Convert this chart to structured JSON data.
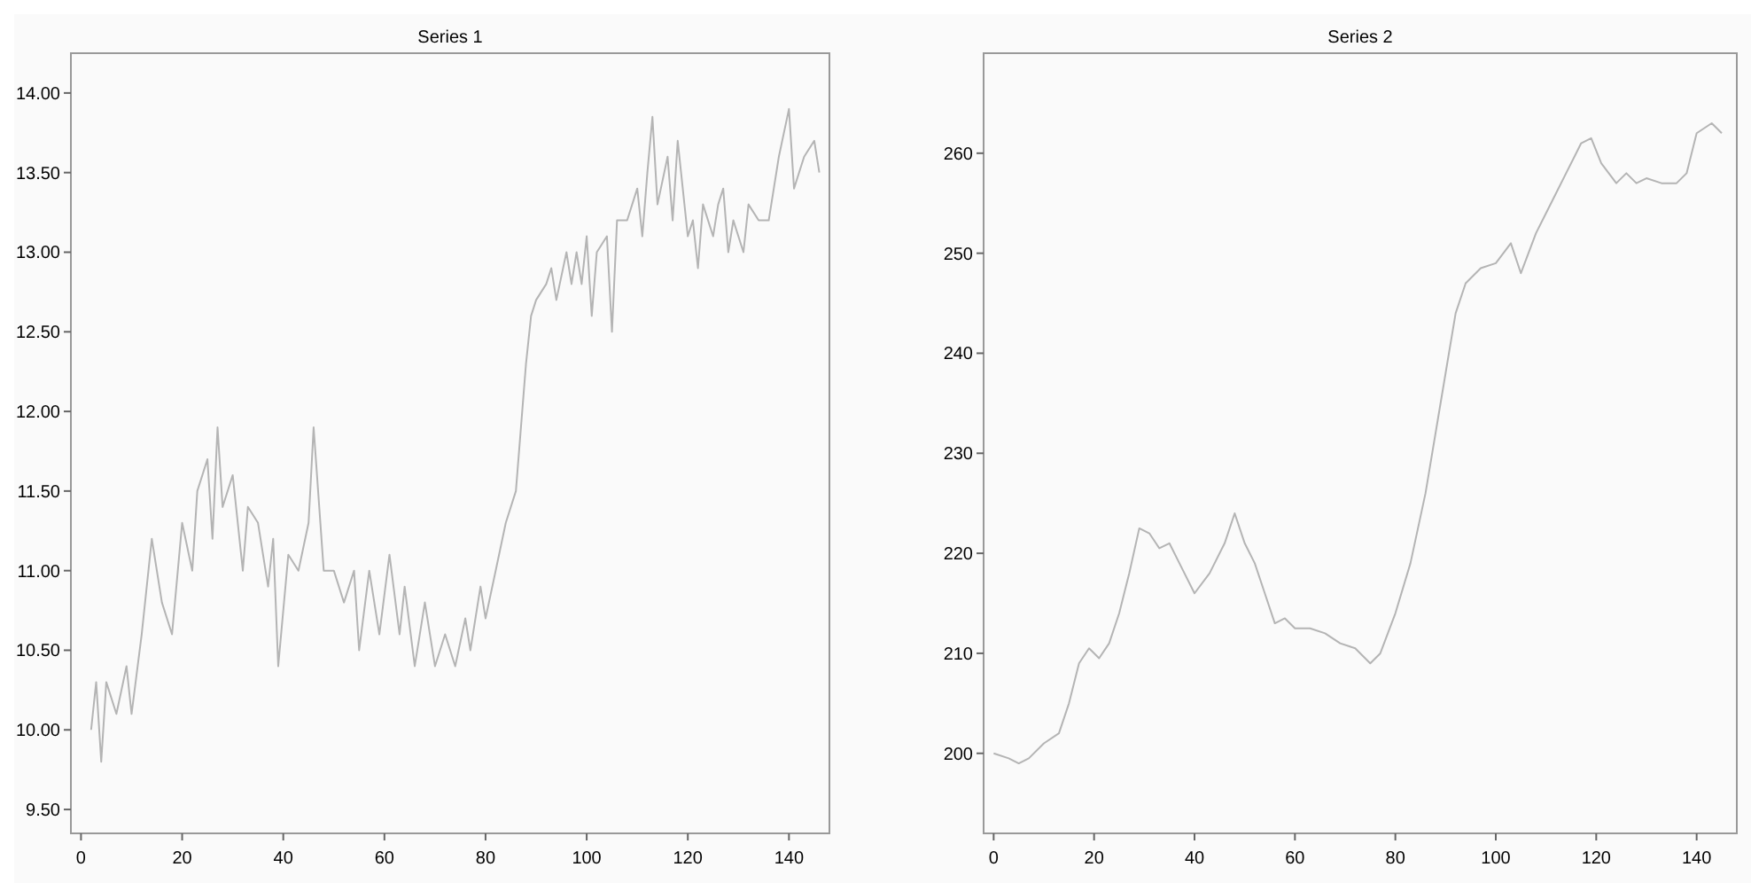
{
  "chart_data": [
    {
      "type": "line",
      "title": "Series 1",
      "xlim": [
        -2,
        148
      ],
      "ylim": [
        9.35,
        14.25
      ],
      "xticks": [
        0,
        20,
        40,
        60,
        80,
        100,
        120,
        140
      ],
      "yticks": [
        {
          "value": 9.5,
          "label": "9.50"
        },
        {
          "value": 10,
          "label": "10.00"
        },
        {
          "value": 10.5,
          "label": "10.50"
        },
        {
          "value": 11,
          "label": "11.00"
        },
        {
          "value": 11.5,
          "label": "11.50"
        },
        {
          "value": 12,
          "label": "12.00"
        },
        {
          "value": 12.5,
          "label": "12.50"
        },
        {
          "value": 13,
          "label": "13.00"
        },
        {
          "value": 13.5,
          "label": "13.50"
        },
        {
          "value": 14,
          "label": "14.00"
        }
      ],
      "grid": false,
      "marker": "none",
      "line_style": "solid",
      "series": [
        {
          "color": "#b4b4b4",
          "x": [
            2,
            3,
            4,
            5,
            7,
            9,
            10,
            12,
            14,
            16,
            18,
            20,
            22,
            23,
            25,
            26,
            27,
            28,
            30,
            32,
            33,
            35,
            37,
            38,
            39,
            41,
            43,
            45,
            46,
            48,
            50,
            52,
            54,
            55,
            57,
            59,
            61,
            63,
            64,
            66,
            68,
            70,
            72,
            74,
            76,
            77,
            79,
            80,
            82,
            84,
            86,
            87,
            88,
            89,
            90,
            92,
            93,
            94,
            96,
            97,
            98,
            99,
            100,
            101,
            102,
            104,
            105,
            106,
            108,
            110,
            111,
            112,
            113,
            114,
            116,
            117,
            118,
            120,
            121,
            122,
            123,
            125,
            126,
            127,
            128,
            129,
            131,
            132,
            134,
            136,
            138,
            140,
            141,
            143,
            145,
            146
          ],
          "values": [
            10.0,
            10.3,
            9.8,
            10.3,
            10.1,
            10.4,
            10.1,
            10.6,
            11.2,
            10.8,
            10.6,
            11.3,
            11.0,
            11.5,
            11.7,
            11.2,
            11.9,
            11.4,
            11.6,
            11.0,
            11.4,
            11.3,
            10.9,
            11.2,
            10.4,
            11.1,
            11.0,
            11.3,
            11.9,
            11.0,
            11.0,
            10.8,
            11.0,
            10.5,
            11.0,
            10.6,
            11.1,
            10.6,
            10.9,
            10.4,
            10.8,
            10.4,
            10.6,
            10.4,
            10.7,
            10.5,
            10.9,
            10.7,
            11.0,
            11.3,
            11.5,
            11.9,
            12.3,
            12.6,
            12.7,
            12.8,
            12.9,
            12.7,
            13.0,
            12.8,
            13.0,
            12.8,
            13.1,
            12.6,
            13.0,
            13.1,
            12.5,
            13.2,
            13.2,
            13.4,
            13.1,
            13.5,
            13.85,
            13.3,
            13.6,
            13.2,
            13.7,
            13.1,
            13.2,
            12.9,
            13.3,
            13.1,
            13.3,
            13.4,
            13.0,
            13.2,
            13.0,
            13.3,
            13.2,
            13.2,
            13.6,
            13.9,
            13.4,
            13.6,
            13.7,
            13.5
          ]
        }
      ]
    },
    {
      "type": "line",
      "title": "Series 2",
      "xlim": [
        -2,
        148
      ],
      "ylim": [
        192,
        270
      ],
      "xticks": [
        0,
        20,
        40,
        60,
        80,
        100,
        120,
        140
      ],
      "yticks": [
        200,
        210,
        220,
        230,
        240,
        250,
        260
      ],
      "grid": false,
      "marker": "none",
      "line_style": "solid",
      "series": [
        {
          "color": "#b4b4b4",
          "x": [
            0,
            3,
            5,
            7,
            10,
            13,
            15,
            17,
            19,
            21,
            23,
            25,
            27,
            29,
            31,
            33,
            35,
            37,
            40,
            43,
            46,
            48,
            50,
            52,
            54,
            56,
            58,
            60,
            63,
            66,
            69,
            72,
            75,
            77,
            80,
            83,
            86,
            88,
            90,
            92,
            94,
            97,
            100,
            103,
            105,
            108,
            111,
            114,
            117,
            119,
            121,
            124,
            126,
            128,
            130,
            133,
            136,
            138,
            140,
            143,
            145
          ],
          "values": [
            200,
            199.5,
            199,
            199.5,
            201,
            202,
            205,
            209,
            210.5,
            209.5,
            211,
            214,
            218,
            222.5,
            222,
            220.5,
            221,
            219,
            216,
            218,
            221,
            224,
            221,
            219,
            216,
            213,
            213.5,
            212.5,
            212.5,
            212,
            211,
            210.5,
            209,
            210,
            214,
            219,
            226,
            232,
            238,
            244,
            247,
            248.5,
            249,
            251,
            248,
            252,
            255,
            258,
            261,
            261.5,
            259,
            257,
            258,
            257,
            257.5,
            257,
            257,
            258,
            262,
            263,
            262
          ]
        }
      ]
    }
  ]
}
